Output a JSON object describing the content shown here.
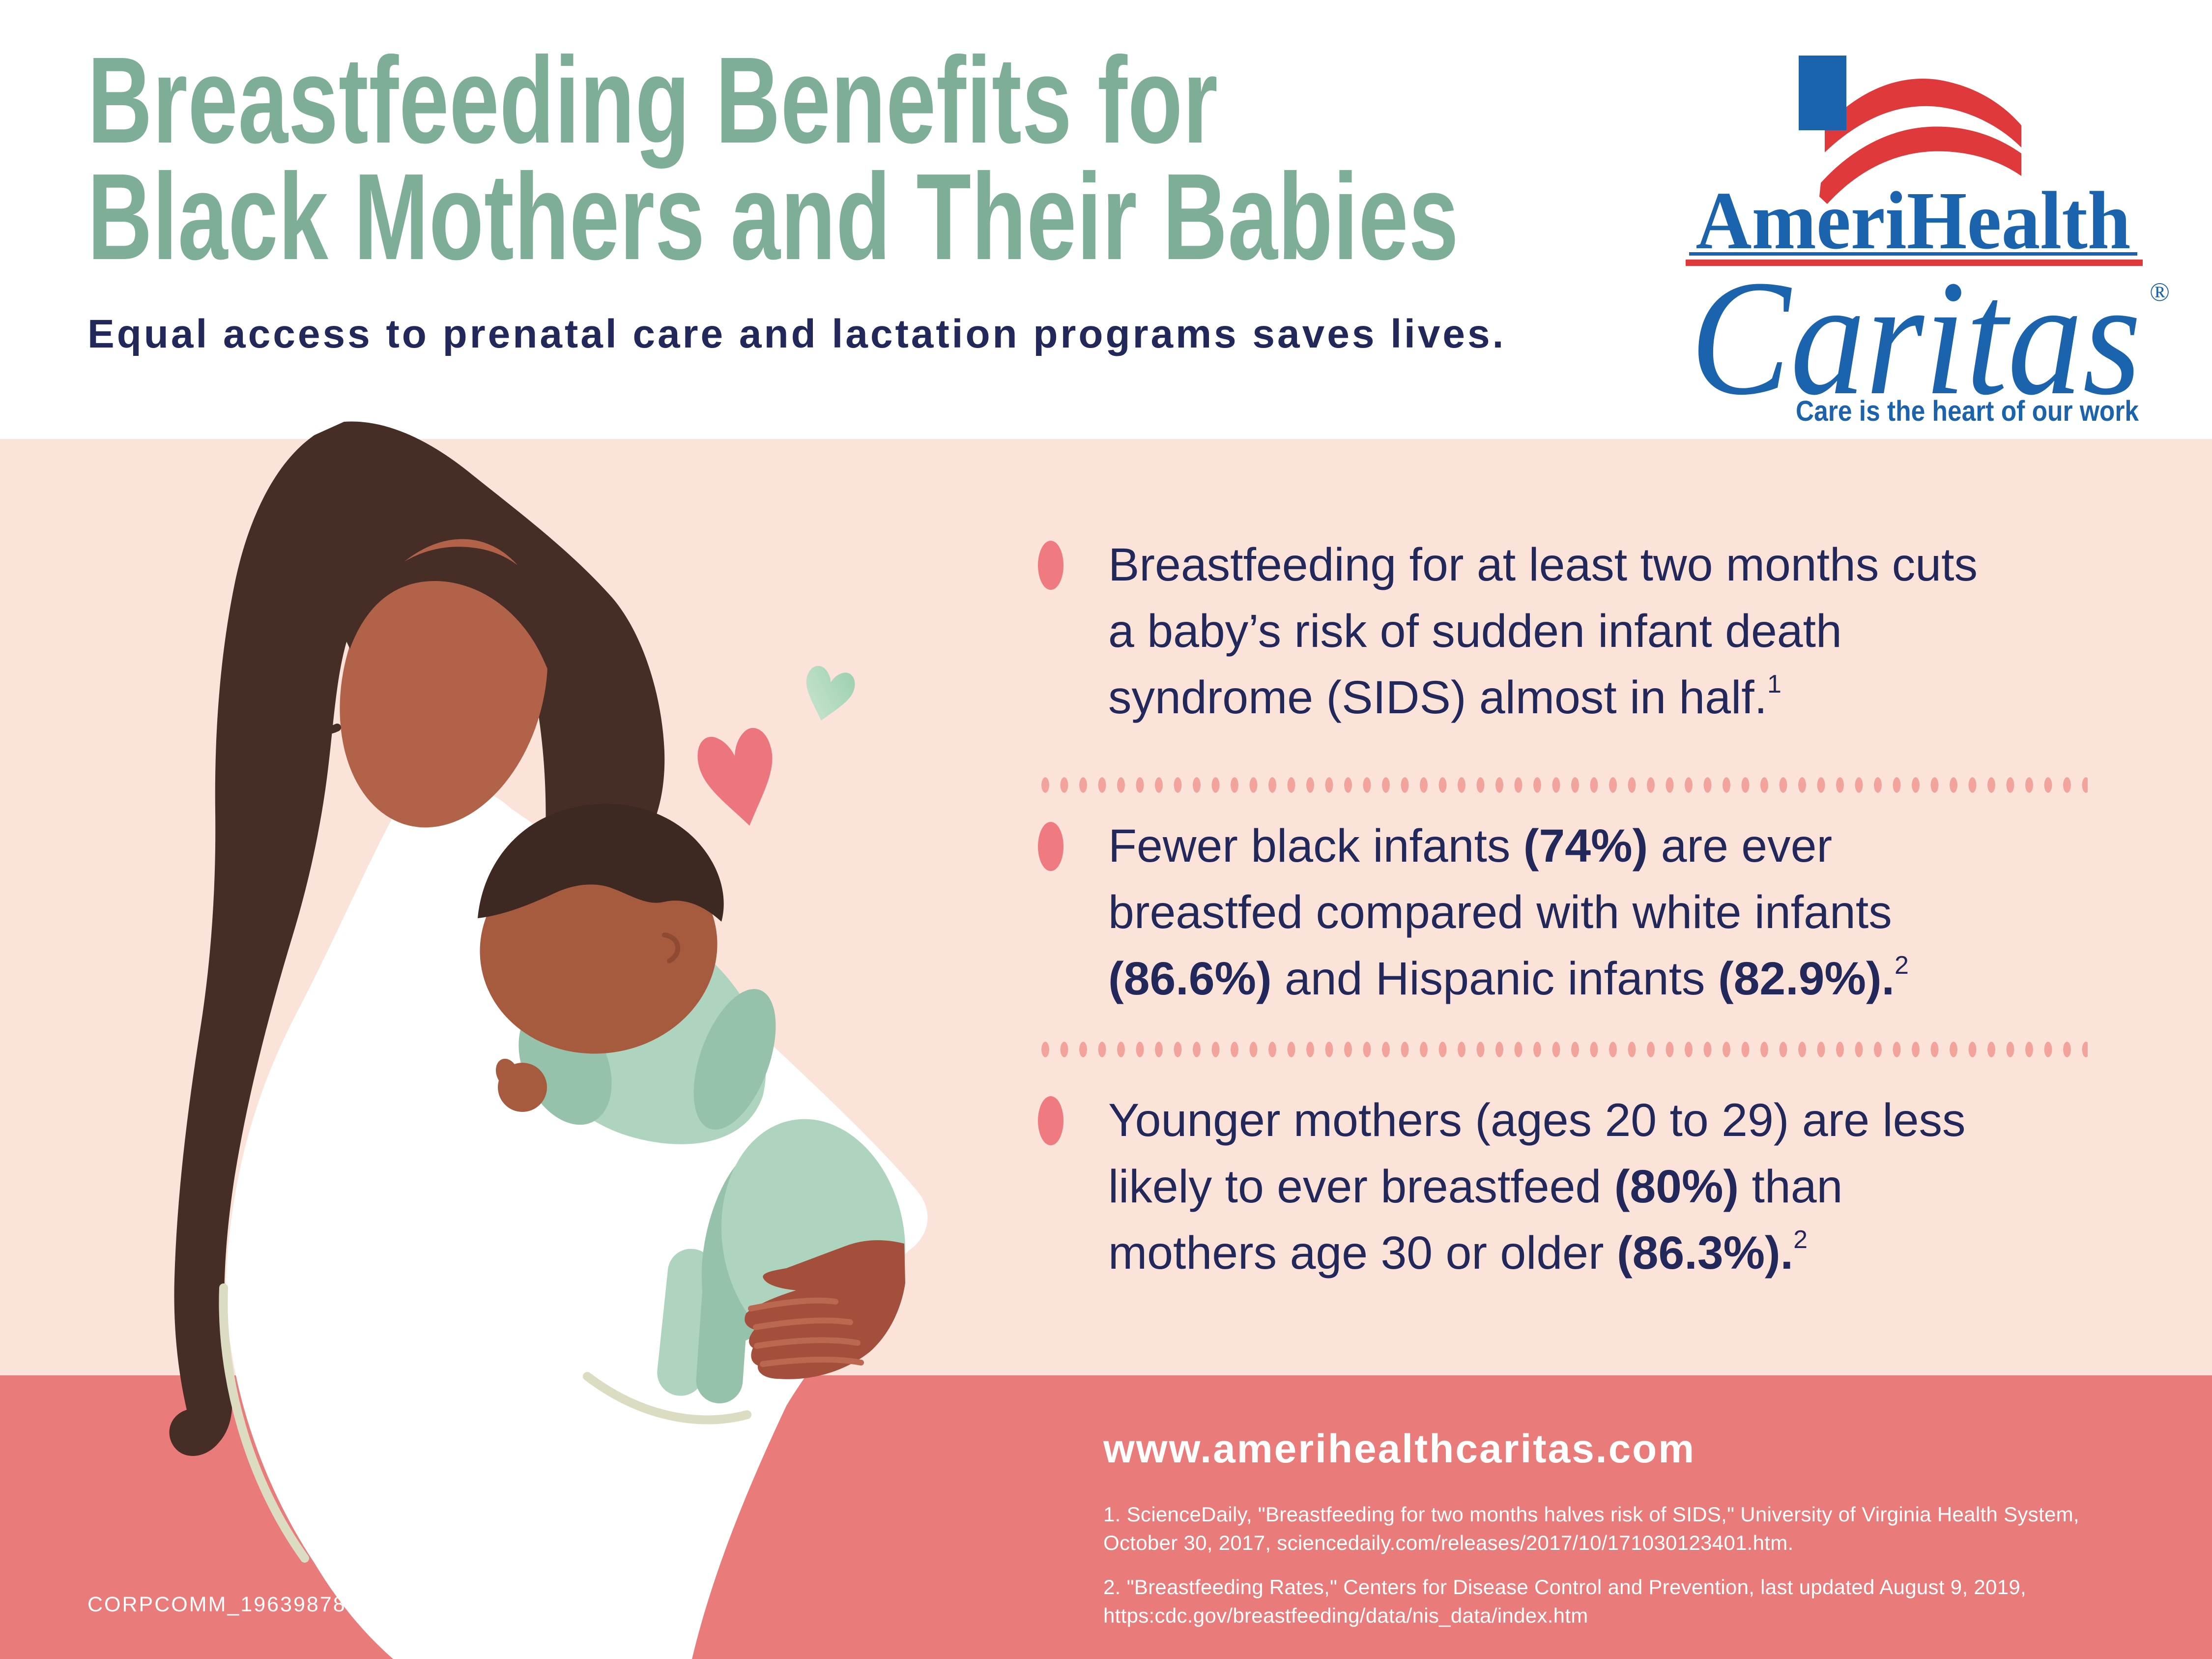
{
  "header": {
    "title_line1": "Breastfeeding Benefits for",
    "title_line2": "Black Mothers and Their Babies",
    "subtitle": "Equal access to prenatal care and lactation programs saves lives."
  },
  "logo": {
    "name_top": "AmeriHealth",
    "name_bottom": "Caritas",
    "registered_mark": "®",
    "tagline": "Care is the heart of our work"
  },
  "bullets": [
    {
      "lines": [
        [
          {
            "t": "Breastfeeding for at least two months cuts"
          }
        ],
        [
          {
            "t": "a baby’s risk of sudden infant death"
          }
        ],
        [
          {
            "t": "syndrome (SIDS) almost in half."
          },
          {
            "sup": "1"
          }
        ]
      ]
    },
    {
      "lines": [
        [
          {
            "t": "Fewer black infants "
          },
          {
            "t": "(74%)",
            "b": true
          },
          {
            "t": " are ever"
          }
        ],
        [
          {
            "t": "breastfed compared with white infants"
          }
        ],
        [
          {
            "t": "(86.6%)",
            "b": true
          },
          {
            "t": " and Hispanic infants "
          },
          {
            "t": "(82.9%).",
            "b": true
          },
          {
            "sup": "2"
          }
        ]
      ]
    },
    {
      "lines": [
        [
          {
            "t": "Younger mothers (ages 20 to 29) are less"
          }
        ],
        [
          {
            "t": "likely to ever breastfeed "
          },
          {
            "t": "(80%)",
            "b": true
          },
          {
            "t": " than"
          }
        ],
        [
          {
            "t": "mothers age 30 or older "
          },
          {
            "t": "(86.3%).",
            "b": true
          },
          {
            "sup": "2"
          }
        ]
      ]
    }
  ],
  "footer": {
    "url": "www.amerihealthcaritas.com",
    "footnotes": [
      {
        "lines": [
          "1. ScienceDaily, \"Breastfeeding for two months halves risk of SIDS,\" University of Virginia Health System,",
          "October 30, 2017, sciencedaily.com/releases/2017/10/171030123401.htm."
        ]
      },
      {
        "lines": [
          "2. \"Breastfeeding Rates,\" Centers for Disease Control and Prevention, last updated August 9, 2019,",
          "https:cdc.gov/breastfeeding/data/nis_data/index.htm"
        ]
      }
    ],
    "job_code": "CORPCOMM_19639878"
  },
  "colors": {
    "pink_bg": "#fbe3da",
    "coral_band": "#ea7b7b",
    "title_green": "#7fae98",
    "navy": "#23285b",
    "bullet_dot": "#ef7a80",
    "separator_dot": "#f2a49c",
    "white": "#ffffff",
    "logo_blue": "#1b63ad",
    "logo_red": "#e0393c",
    "skin": "#b26248",
    "baby_skin": "#a65a3e",
    "hand": "#a34f3b",
    "finger_line": "#bb6850",
    "ear_line": "#8f4a33",
    "hair": "#462e27",
    "baby_hair": "#3d2922",
    "dress_shadow": "#dcdcc2",
    "romper": "#aed4bf",
    "romper_dark": "#96c2ab",
    "heart_pink": "#ed767e",
    "heart_green": "#9ccfae",
    "heart_green_light": "#cde7d3"
  }
}
